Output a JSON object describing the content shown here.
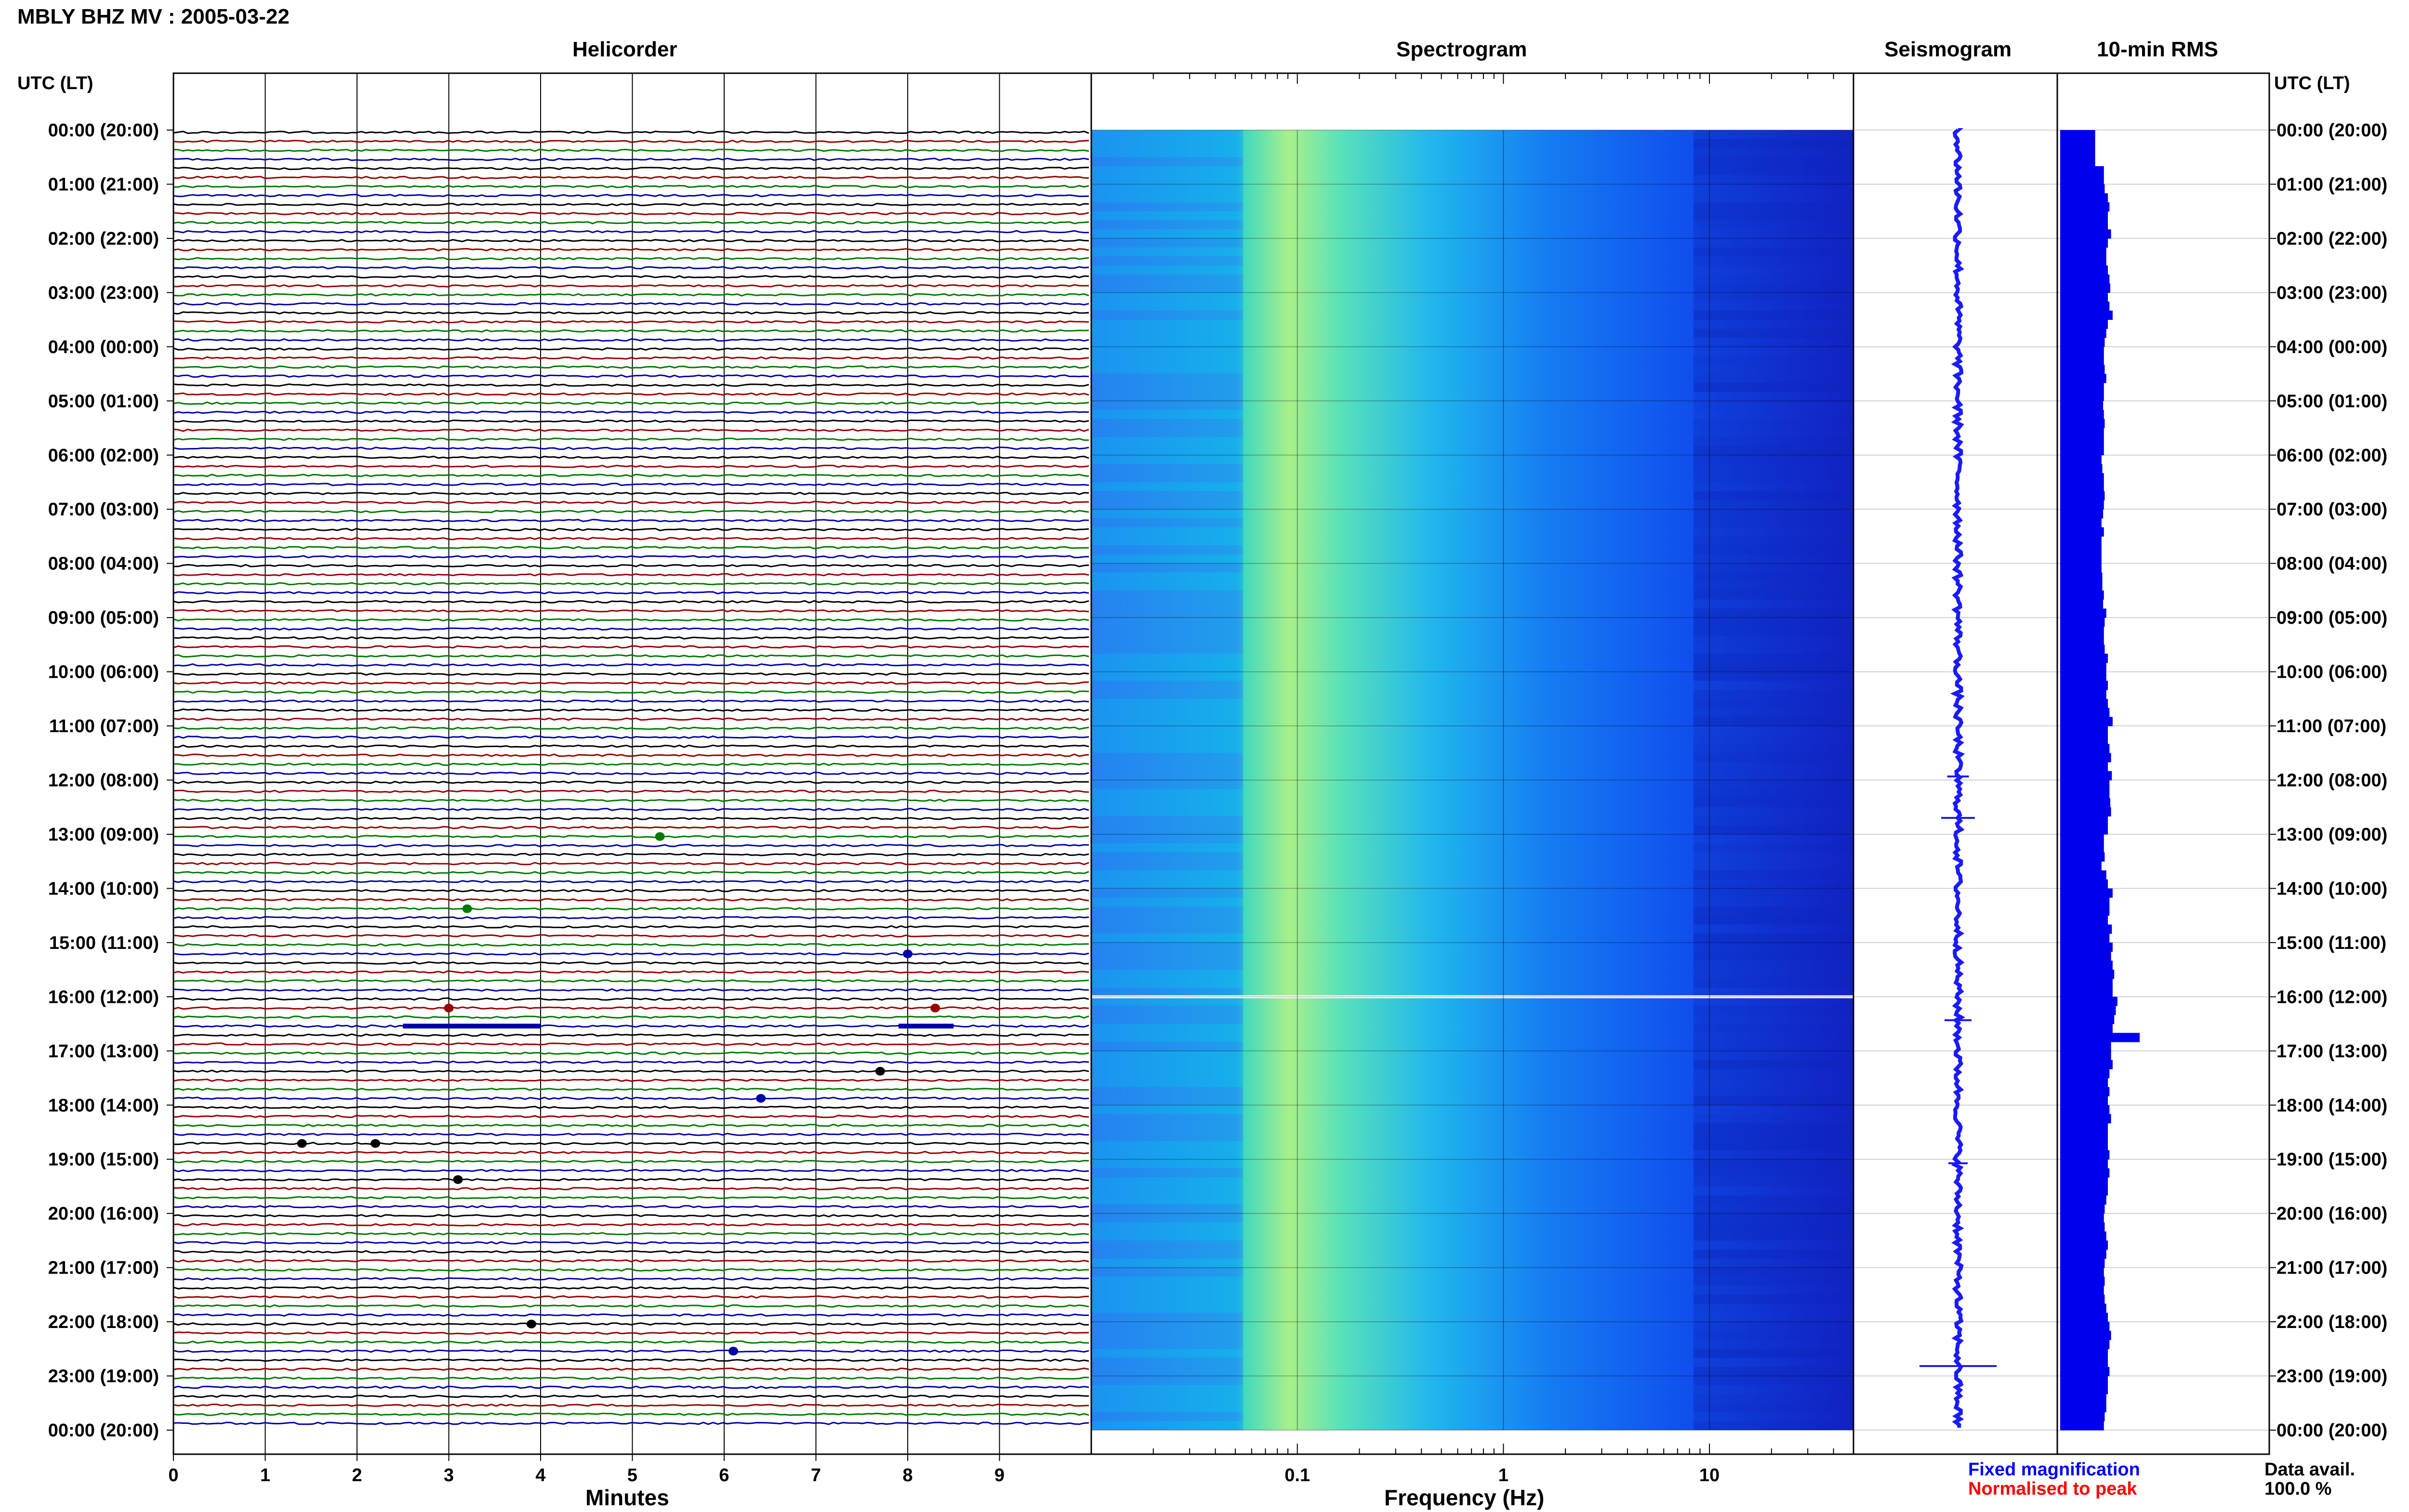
{
  "header": {
    "title": "MBLY BHZ MV : 2005-03-22",
    "utc_label_left": "UTC (LT)",
    "utc_label_right": "UTC (LT)"
  },
  "panels": {
    "helicorder": "Helicorder",
    "spectrogram": "Spectrogram",
    "seismogram": "Seismogram",
    "rms": "10-min RMS"
  },
  "axes": {
    "minutes_label": "Minutes",
    "frequency_label": "Frequency (Hz)",
    "minute_ticks": [
      "0",
      "1",
      "2",
      "3",
      "4",
      "5",
      "6",
      "7",
      "8",
      "9"
    ],
    "frequency_ticks": [
      "0.1",
      "1",
      "10"
    ]
  },
  "time_labels": [
    "00:00 (20:00)",
    "01:00 (21:00)",
    "02:00 (22:00)",
    "03:00 (23:00)",
    "04:00 (00:00)",
    "05:00 (01:00)",
    "06:00 (02:00)",
    "07:00 (03:00)",
    "08:00 (04:00)",
    "09:00 (05:00)",
    "10:00 (06:00)",
    "11:00 (07:00)",
    "12:00 (08:00)",
    "13:00 (09:00)",
    "14:00 (10:00)",
    "15:00 (11:00)",
    "16:00 (12:00)",
    "17:00 (13:00)",
    "18:00 (14:00)",
    "19:00 (15:00)",
    "20:00 (16:00)",
    "21:00 (17:00)",
    "22:00 (18:00)",
    "23:00 (19:00)",
    "00:00 (20:00)"
  ],
  "legend": {
    "fixed": "Fixed magnification",
    "normalised": "Normalised to peak",
    "data_avail_label": "Data avail.",
    "data_avail_value": "100.0 %"
  },
  "colors": {
    "trace_cycle": [
      "#000000",
      "#990000",
      "#007a00",
      "#0000aa"
    ],
    "seismogram": "#1a1aff",
    "rms": "#0000ee",
    "fixed_text": "#0000ff",
    "normalised_text": "#ff0000"
  },
  "chart_data": {
    "type": "heatmap",
    "title": "MBLY BHZ MV : 2005-03-22",
    "helicorder": {
      "xlabel": "Minutes",
      "xlim": [
        0,
        10
      ],
      "rows": 144,
      "row_minutes": 10,
      "events": [
        {
          "time": "13:00",
          "minute": 5.3
        },
        {
          "time": "14:20",
          "minute": 3.2
        },
        {
          "time": "15:10",
          "minute": 8.0
        },
        {
          "time": "16:10",
          "minute": 3.0
        },
        {
          "time": "16:10",
          "minute": 8.3
        },
        {
          "time": "17:20",
          "minute": 7.7
        },
        {
          "time": "17:50",
          "minute": 6.4
        },
        {
          "time": "18:40",
          "minute": 1.4
        },
        {
          "time": "18:40",
          "minute": 2.2
        },
        {
          "time": "19:20",
          "minute": 3.1
        },
        {
          "time": "22:00",
          "minute": 3.9
        },
        {
          "time": "22:30",
          "minute": 6.1
        }
      ]
    },
    "spectrogram": {
      "xlabel": "Frequency (Hz)",
      "xscale": "log",
      "xlim": [
        0.01,
        50
      ],
      "peak_band_hz": [
        0.12,
        0.35
      ],
      "gap_line_utc": "16:00"
    },
    "rms_10min": {
      "type": "bar",
      "values": [
        0.44,
        0.44,
        0.44,
        0.44,
        0.55,
        0.55,
        0.56,
        0.6,
        0.62,
        0.6,
        0.6,
        0.64,
        0.6,
        0.58,
        0.58,
        0.6,
        0.62,
        0.63,
        0.6,
        0.62,
        0.66,
        0.6,
        0.58,
        0.56,
        0.55,
        0.55,
        0.56,
        0.58,
        0.55,
        0.55,
        0.54,
        0.55,
        0.56,
        0.55,
        0.55,
        0.55,
        0.52,
        0.53,
        0.55,
        0.55,
        0.56,
        0.55,
        0.54,
        0.52,
        0.55,
        0.52,
        0.52,
        0.52,
        0.52,
        0.53,
        0.53,
        0.55,
        0.54,
        0.58,
        0.56,
        0.55,
        0.55,
        0.56,
        0.6,
        0.58,
        0.58,
        0.6,
        0.58,
        0.6,
        0.62,
        0.66,
        0.6,
        0.6,
        0.62,
        0.64,
        0.6,
        0.65,
        0.62,
        0.62,
        0.63,
        0.64,
        0.6,
        0.6,
        0.55,
        0.55,
        0.56,
        0.52,
        0.58,
        0.6,
        0.66,
        0.62,
        0.62,
        0.6,
        0.65,
        0.62,
        0.66,
        0.64,
        0.66,
        0.68,
        0.66,
        0.66,
        0.72,
        0.7,
        0.68,
        0.66,
        1.0,
        0.64,
        0.64,
        0.66,
        0.62,
        0.6,
        0.62,
        0.6,
        0.62,
        0.64,
        0.6,
        0.6,
        0.6,
        0.62,
        0.6,
        0.62,
        0.6,
        0.6,
        0.58,
        0.56,
        0.55,
        0.56,
        0.58,
        0.6,
        0.58,
        0.56,
        0.55,
        0.56,
        0.55,
        0.56,
        0.58,
        0.6,
        0.62,
        0.64,
        0.62,
        0.6,
        0.6,
        0.62,
        0.6,
        0.6,
        0.58,
        0.58,
        0.56,
        0.55
      ]
    }
  }
}
